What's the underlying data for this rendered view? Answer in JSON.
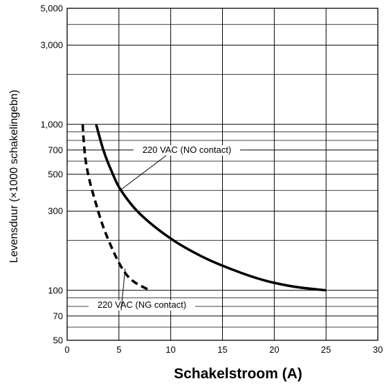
{
  "chart_data": {
    "type": "line",
    "title": "",
    "xlabel": "Schakelstroom (A)",
    "ylabel": "Levensduur (×1000 schakelingebn)",
    "xlim": [
      0,
      30
    ],
    "ylim": [
      50,
      5000
    ],
    "y_scale": "log",
    "grid": true,
    "x_ticks": [
      0,
      5,
      10,
      15,
      20,
      25,
      30
    ],
    "x_tick_labels": [
      "0",
      "5",
      "10",
      "15",
      "20",
      "25",
      "30"
    ],
    "y_ticks": [
      50,
      70,
      100,
      300,
      500,
      700,
      1000,
      3000,
      5000
    ],
    "y_tick_labels": [
      "50",
      "70",
      "100",
      "300",
      "500",
      "700",
      "1,000",
      "3,000",
      "5,000"
    ],
    "y_minor_grid": [
      60,
      80,
      90,
      200,
      400,
      600,
      800,
      900,
      2000,
      4000
    ],
    "series": [
      {
        "name": "220 VAC (NO contact)",
        "style": "solid",
        "x": [
          2.8,
          3.5,
          4.3,
          5.2,
          7,
          10,
          13,
          16,
          19,
          22,
          25
        ],
        "y": [
          1000,
          700,
          520,
          400,
          290,
          205,
          160,
          133,
          115,
          105,
          100
        ]
      },
      {
        "name": "220 VAC (NG contact)",
        "style": "dashed",
        "x": [
          1.5,
          1.6,
          1.8,
          2.2,
          2.8,
          3.5,
          4.5,
          5.5,
          6.5,
          8
        ],
        "y": [
          1000,
          800,
          600,
          450,
          330,
          240,
          170,
          130,
          112,
          100
        ]
      }
    ]
  }
}
